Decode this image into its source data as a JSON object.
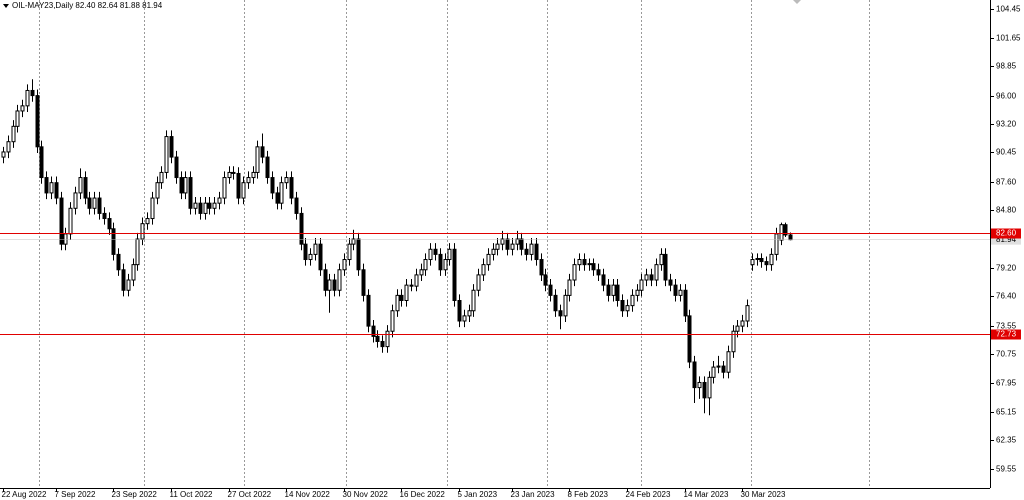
{
  "chart_data": {
    "type": "candlestick",
    "title": "OIL-MAY23,Daily  82.40 82.64 81.88 81.94",
    "ylim": [
      57.7,
      105.33
    ],
    "yticks": [
      104.45,
      101.65,
      98.85,
      {
        "value": 96,
        "label": "96.00"
      },
      {
        "value": 93.2,
        "label": "93.20"
      },
      90.45,
      {
        "value": 87.6,
        "label": "87.60"
      },
      {
        "value": 84.8,
        "label": "84.80"
      },
      {
        "value": 79.2,
        "label": "79.20"
      },
      {
        "value": 76.4,
        "label": "76.40"
      },
      73.55,
      70.75,
      67.95,
      65.15,
      62.35,
      59.55
    ],
    "xticks": [
      {
        "value": 0,
        "label": "22 Aug 2022"
      },
      {
        "value": 11,
        "label": "7 Sep 2022"
      },
      {
        "value": 23,
        "label": "23 Sep 2022"
      },
      {
        "value": 35,
        "label": "11 Oct 2022"
      },
      {
        "value": 47,
        "label": "27 Oct 2022"
      },
      {
        "value": 59,
        "label": "14 Nov 2022"
      },
      {
        "value": 71,
        "label": "30 Nov 2022"
      },
      {
        "value": 83,
        "label": "16 Dec 2022"
      },
      {
        "value": 95,
        "label": "5 Jan 2023"
      },
      {
        "value": 106,
        "label": "23 Jan 2023"
      },
      {
        "value": 118,
        "label": "8 Feb 2023"
      },
      {
        "value": 130,
        "label": "24 Feb 2023"
      },
      {
        "value": 142,
        "label": "14 Mar 2023"
      },
      {
        "value": 154,
        "label": "30 Mar 2023"
      }
    ],
    "levels": [
      {
        "value": 82.6,
        "label": "82.60"
      },
      {
        "value": 72.73,
        "label": "72.73"
      }
    ],
    "level_color": "#e00000",
    "up_color": "#ffffff",
    "down_color": "#000000",
    "candles": [
      [
        90,
        91,
        89.4,
        90.5
      ],
      [
        90.5,
        92.1,
        89.9,
        91.5
      ],
      [
        91.5,
        93.6,
        90.9,
        93
      ],
      [
        93,
        95.1,
        92.4,
        94.5
      ],
      [
        94.5,
        95.6,
        93.9,
        95
      ],
      [
        95,
        97.1,
        94.4,
        96.5
      ],
      [
        96.5,
        97.6,
        95.4,
        96
      ],
      [
        96,
        96.6,
        90.4,
        91
      ],
      [
        91,
        91.6,
        87.4,
        88
      ],
      [
        88,
        88.6,
        85.9,
        86.5
      ],
      [
        86.5,
        88.1,
        85.9,
        87.5
      ],
      [
        87.5,
        88.1,
        85.4,
        86
      ],
      [
        86,
        86.6,
        80.9,
        81.5
      ],
      [
        81.5,
        83.1,
        80.9,
        82.5
      ],
      [
        82.5,
        85.6,
        81.9,
        85
      ],
      [
        85,
        87.1,
        84.4,
        86.5
      ],
      [
        86.5,
        88.9,
        85.9,
        88
      ],
      [
        88,
        88.6,
        85.4,
        86
      ],
      [
        86,
        86.6,
        84.4,
        85
      ],
      [
        85,
        86.6,
        84.4,
        86
      ],
      [
        86,
        86.6,
        83.9,
        84.5
      ],
      [
        84.5,
        85.1,
        83.4,
        84
      ],
      [
        84,
        84.6,
        82.4,
        83
      ],
      [
        83,
        83.6,
        79.9,
        80.5
      ],
      [
        80.5,
        81.1,
        78.4,
        79
      ],
      [
        79,
        79.6,
        76.4,
        77
      ],
      [
        77,
        78.6,
        76.4,
        78
      ],
      [
        78,
        80.1,
        77.4,
        79.5
      ],
      [
        79.5,
        82.6,
        78.9,
        82
      ],
      [
        82,
        84.1,
        81.4,
        83.5
      ],
      [
        83.5,
        84.6,
        82.9,
        84
      ],
      [
        84,
        86.6,
        83.4,
        86
      ],
      [
        86,
        88.1,
        85.4,
        87.5
      ],
      [
        87.5,
        89.1,
        86.9,
        88.5
      ],
      [
        88.5,
        92.6,
        87.9,
        92
      ],
      [
        92,
        92.6,
        89.4,
        90
      ],
      [
        90,
        90.6,
        87.4,
        88
      ],
      [
        88,
        88.6,
        85.9,
        86.5
      ],
      [
        86.5,
        88.6,
        85.9,
        88
      ],
      [
        88,
        88.6,
        84.4,
        85
      ],
      [
        85,
        86.1,
        84.4,
        85.5
      ],
      [
        85.5,
        86.1,
        83.9,
        84.5
      ],
      [
        84.5,
        86.1,
        83.9,
        85.5
      ],
      [
        85.5,
        86.1,
        84.4,
        85
      ],
      [
        85,
        86.1,
        84.4,
        85.5
      ],
      [
        85.5,
        86.6,
        84.9,
        86
      ],
      [
        86,
        88.6,
        85.4,
        88
      ],
      [
        88,
        89.1,
        87.4,
        88.5
      ],
      [
        88.5,
        89.1,
        87.8,
        88.4
      ],
      [
        88.4,
        89,
        85.4,
        86
      ],
      [
        86,
        88.1,
        85.4,
        87.5
      ],
      [
        87.5,
        88.6,
        86.9,
        88
      ],
      [
        88,
        89.1,
        87.4,
        88.5
      ],
      [
        88.5,
        91.6,
        87.9,
        91
      ],
      [
        91,
        92.3,
        89.4,
        90
      ],
      [
        90,
        90.6,
        87.4,
        88
      ],
      [
        88,
        88.6,
        85.9,
        86.5
      ],
      [
        86.5,
        87.1,
        84.9,
        85.5
      ],
      [
        85.5,
        88.1,
        84.9,
        87.5
      ],
      [
        87.5,
        88.6,
        86.9,
        88
      ],
      [
        88,
        88.6,
        85.4,
        86
      ],
      [
        86,
        86.6,
        83.9,
        84.5
      ],
      [
        84.5,
        85.1,
        80.9,
        81.5
      ],
      [
        81.5,
        82.1,
        79.4,
        80
      ],
      [
        80,
        81.1,
        79.4,
        80.5
      ],
      [
        80.5,
        82.1,
        79.9,
        81.5
      ],
      [
        81.5,
        82.1,
        78.4,
        79
      ],
      [
        79,
        79.6,
        76.4,
        77
      ],
      [
        77,
        78.6,
        74.8,
        78
      ],
      [
        78,
        78.6,
        76.4,
        77
      ],
      [
        77,
        79.6,
        76.4,
        79
      ],
      [
        79,
        80.6,
        78.4,
        80
      ],
      [
        80,
        82.1,
        79.4,
        81.5
      ],
      [
        81.5,
        82.9,
        80.9,
        82
      ],
      [
        82,
        82.6,
        78.4,
        79
      ],
      [
        79,
        79.6,
        75.9,
        76.5
      ],
      [
        76.5,
        77.1,
        72.9,
        73.5
      ],
      [
        73.5,
        74.1,
        71.9,
        72.5
      ],
      [
        72.5,
        73.1,
        71.4,
        72
      ],
      [
        72,
        72.6,
        70.9,
        71.5
      ],
      [
        71.5,
        73.6,
        70.9,
        73
      ],
      [
        73,
        75.6,
        72.4,
        75
      ],
      [
        75,
        77.1,
        74.4,
        76.5
      ],
      [
        76.5,
        77.1,
        75.4,
        76
      ],
      [
        76,
        78.1,
        75.4,
        77.5
      ],
      [
        77.5,
        78.1,
        76.9,
        77.4
      ],
      [
        77.4,
        79.1,
        76.9,
        78.5
      ],
      [
        78.5,
        79.6,
        77.9,
        79
      ],
      [
        79,
        80.6,
        78.4,
        80
      ],
      [
        80,
        81.6,
        79.4,
        81
      ],
      [
        81,
        81.6,
        79.9,
        80.5
      ],
      [
        80.5,
        81.1,
        78.4,
        79
      ],
      [
        79,
        80.6,
        78.4,
        80
      ],
      [
        80,
        81.6,
        79.4,
        81
      ],
      [
        81,
        81.6,
        75.4,
        76
      ],
      [
        76,
        76.6,
        73.4,
        74
      ],
      [
        74,
        75.1,
        73.4,
        74.5
      ],
      [
        74.5,
        75.6,
        73.9,
        75
      ],
      [
        75,
        77.6,
        74.4,
        77
      ],
      [
        77,
        79.1,
        76.4,
        78.5
      ],
      [
        78.5,
        80.1,
        77.9,
        79.5
      ],
      [
        79.5,
        81.1,
        78.9,
        80.5
      ],
      [
        80.5,
        81.6,
        79.9,
        81
      ],
      [
        81,
        82.1,
        80.4,
        81.5
      ],
      [
        81.5,
        82.8,
        80.9,
        82
      ],
      [
        82,
        82.6,
        80.4,
        81
      ],
      [
        81,
        82.1,
        80.4,
        81.5
      ],
      [
        81.5,
        82.8,
        80.9,
        82
      ],
      [
        82,
        82.6,
        80.4,
        81
      ],
      [
        81,
        81.6,
        79.9,
        80.5
      ],
      [
        80.5,
        82.1,
        79.9,
        81.5
      ],
      [
        81.5,
        82.1,
        79.4,
        80
      ],
      [
        80,
        80.6,
        77.9,
        78.5
      ],
      [
        78.5,
        79.1,
        76.9,
        77.5
      ],
      [
        77.5,
        78.1,
        75.9,
        76.5
      ],
      [
        76.5,
        77.1,
        74.4,
        75
      ],
      [
        75,
        75.6,
        73.2,
        74.5
      ],
      [
        74.5,
        77.1,
        73.9,
        76.5
      ],
      [
        76.5,
        78.6,
        75.9,
        78
      ],
      [
        78,
        80.1,
        77.4,
        79.5
      ],
      [
        79.5,
        80.6,
        78.9,
        80
      ],
      [
        80,
        80.6,
        78.9,
        79.5
      ],
      [
        79.5,
        80.1,
        78.9,
        79.6
      ],
      [
        79.6,
        80.1,
        78.4,
        79
      ],
      [
        79,
        79.6,
        77.9,
        78.5
      ],
      [
        78.5,
        79.1,
        76.9,
        77.5
      ],
      [
        77.5,
        78.1,
        75.9,
        76.5
      ],
      [
        76.5,
        78.1,
        75.9,
        77.5
      ],
      [
        77.5,
        78.1,
        75.4,
        76
      ],
      [
        76,
        76.6,
        74.4,
        75
      ],
      [
        75,
        76.1,
        74.4,
        75.5
      ],
      [
        75.5,
        77.1,
        74.9,
        76.5
      ],
      [
        76.5,
        77.6,
        75.9,
        77
      ],
      [
        77,
        78.6,
        76.4,
        78
      ],
      [
        78,
        79.1,
        77.4,
        78.5
      ],
      [
        78.5,
        79.1,
        77.4,
        78
      ],
      [
        78,
        80.1,
        77.4,
        79.5
      ],
      [
        79.5,
        81.1,
        78.9,
        80.5
      ],
      [
        80.5,
        81.1,
        77.4,
        78
      ],
      [
        78,
        78.6,
        76.9,
        77.5
      ],
      [
        77.5,
        78.1,
        75.9,
        76.5
      ],
      [
        76.5,
        77.6,
        75.9,
        77
      ],
      [
        77,
        77.6,
        73.9,
        74.5
      ],
      [
        74.5,
        75.1,
        69.4,
        70
      ],
      [
        70,
        70.6,
        66,
        67.5
      ],
      [
        67.5,
        68.6,
        66.4,
        68
      ],
      [
        68,
        68.6,
        65,
        66.5
      ],
      [
        66.5,
        69.1,
        64.8,
        68.5
      ],
      [
        68.5,
        70.1,
        67.9,
        69.5
      ],
      [
        69.5,
        70.6,
        68.9,
        69.6
      ],
      [
        69.6,
        70.1,
        68.4,
        69
      ],
      [
        69,
        71.6,
        68.4,
        71
      ],
      [
        71,
        73.6,
        70.4,
        73
      ],
      [
        73,
        74.1,
        72.4,
        73.5
      ],
      [
        73.5,
        74.6,
        72.9,
        74
      ],
      [
        74,
        76.1,
        73.4,
        75.5
      ],
      [
        79.5,
        80.6,
        78.9,
        80
      ],
      [
        80,
        80.6,
        79.4,
        80.1
      ],
      [
        80.1,
        80.6,
        79.2,
        79.8
      ],
      [
        79.8,
        80.3,
        78.9,
        79.5
      ],
      [
        79.5,
        81.1,
        78.9,
        80.5
      ],
      [
        80.5,
        83.1,
        79.9,
        82.5
      ],
      [
        81.9,
        83.6,
        81.4,
        83.4
      ],
      [
        83.4,
        83.6,
        82.2,
        82.4
      ],
      [
        82.4,
        82.64,
        81.88,
        81.94
      ]
    ]
  }
}
